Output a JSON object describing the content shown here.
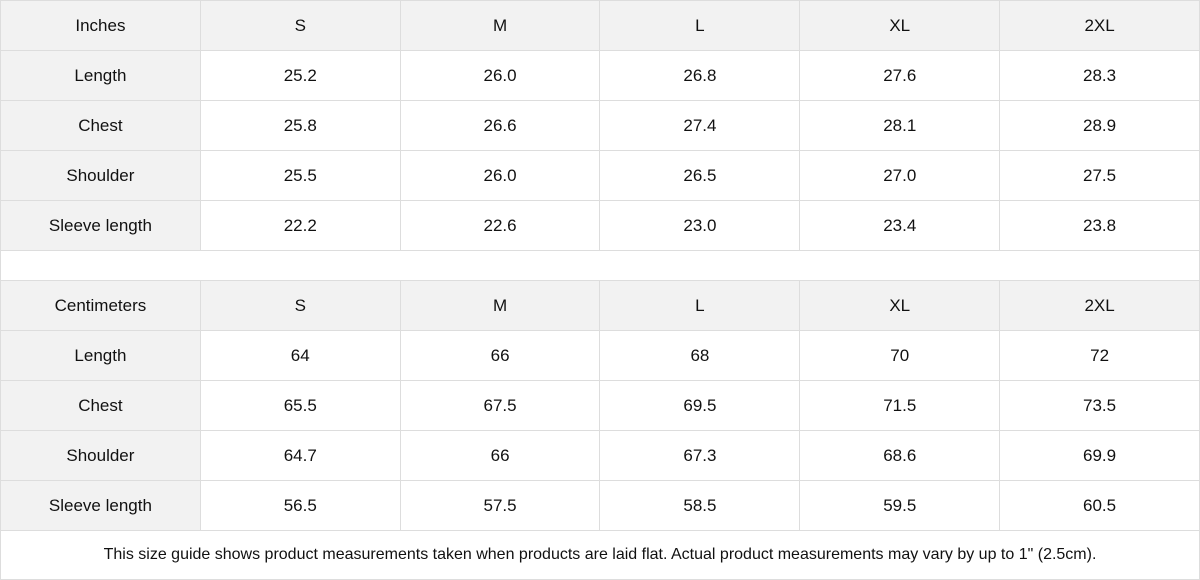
{
  "tables": [
    {
      "header": [
        "Inches",
        "S",
        "M",
        "L",
        "XL",
        "2XL"
      ],
      "rows": [
        [
          "Length",
          "25.2",
          "26.0",
          "26.8",
          "27.6",
          "28.3"
        ],
        [
          "Chest",
          "25.8",
          "26.6",
          "27.4",
          "28.1",
          "28.9"
        ],
        [
          "Shoulder",
          "25.5",
          "26.0",
          "26.5",
          "27.0",
          "27.5"
        ],
        [
          "Sleeve length",
          "22.2",
          "22.6",
          "23.0",
          "23.4",
          "23.8"
        ]
      ]
    },
    {
      "header": [
        "Centimeters",
        "S",
        "M",
        "L",
        "XL",
        "2XL"
      ],
      "rows": [
        [
          "Length",
          "64",
          "66",
          "68",
          "70",
          "72"
        ],
        [
          "Chest",
          "65.5",
          "67.5",
          "69.5",
          "71.5",
          "73.5"
        ],
        [
          "Shoulder",
          "64.7",
          "66",
          "67.3",
          "68.6",
          "69.9"
        ],
        [
          "Sleeve length",
          "56.5",
          "57.5",
          "58.5",
          "59.5",
          "60.5"
        ]
      ]
    }
  ],
  "note": "This size guide shows product measurements taken when products are laid flat.  Actual product measurements may vary by up to 1\" (2.5cm).",
  "colors": {
    "header_bg": "#f2f2f2",
    "border": "#dddddd"
  }
}
